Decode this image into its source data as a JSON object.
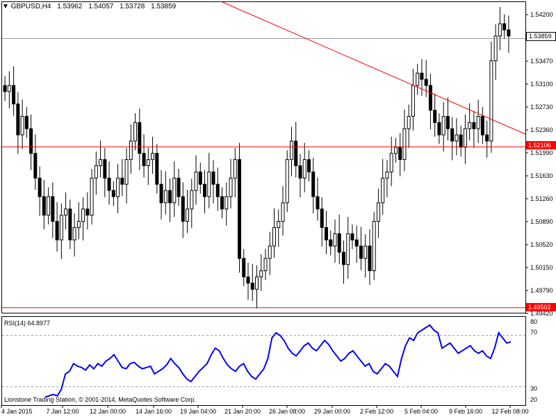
{
  "header": {
    "symbol": "GBPUSD,H4",
    "open": "1.53962",
    "high": "1.54057",
    "low": "1.53728",
    "close": "1.53859"
  },
  "price_axis": {
    "ticks": [
      "1.54200",
      "1.53470",
      "1.53100",
      "1.52730",
      "1.52360",
      "1.51990",
      "1.51630",
      "1.51260",
      "1.50890",
      "1.50520",
      "1.50150",
      "1.49790",
      "1.49420"
    ],
    "current_price": "1.53859",
    "level_1": "1.52106",
    "level_2": "1.49502"
  },
  "rsi": {
    "title": "RSI(14) 64.8977",
    "ticks": [
      "80",
      "70",
      "30",
      "20"
    ]
  },
  "date_axis": {
    "ticks": [
      "4 Jan 2015",
      "7 Jan 12:00",
      "12 Jan 00:00",
      "14 Jan 16:00",
      "19 Jan 04:00",
      "21 Jan 20:00",
      "26 Jan 08:00",
      "29 Jan 00:00",
      "2 Feb 12:00",
      "5 Feb 04:00",
      "9 Feb 16:00",
      "12 Feb 08:00"
    ]
  },
  "footer": {
    "copyright": "Lionstone Trading Station, © 2001-2014, MetaQuotes Software Corp."
  },
  "colors": {
    "candle": "#000000",
    "support_line": "#ff0000",
    "trend_line": "#ff0000",
    "rsi_line": "#0000ff",
    "grid_dash": "#a0a0a0"
  },
  "chart_data": {
    "type": "candlestick",
    "symbol": "GBPUSD",
    "timeframe": "H4",
    "ylim": [
      1.4942,
      1.5445
    ],
    "horizontal_levels": [
      1.52106,
      1.49502,
      1.53859
    ],
    "trendline": {
      "from_index": 0,
      "to_index": 4
    },
    "close": [
      1.53,
      1.531,
      1.528,
      1.523,
      1.526,
      1.524,
      1.52,
      1.516,
      1.513,
      1.51,
      1.513,
      1.509,
      1.506,
      1.51,
      1.511,
      1.506,
      1.508,
      1.509,
      1.511,
      1.51,
      1.516,
      1.518,
      1.519,
      1.516,
      1.514,
      1.513,
      1.516,
      1.515,
      1.519,
      1.522,
      1.525,
      1.52,
      1.518,
      1.519,
      1.52,
      1.515,
      1.512,
      1.514,
      1.512,
      1.516,
      1.513,
      1.509,
      1.511,
      1.514,
      1.517,
      1.515,
      1.513,
      1.517,
      1.515,
      1.513,
      1.511,
      1.513,
      1.516,
      1.519,
      1.503,
      1.5,
      1.499,
      1.498,
      1.5,
      1.501,
      1.503,
      1.505,
      1.508,
      1.509,
      1.512,
      1.519,
      1.522,
      1.518,
      1.516,
      1.519,
      1.517,
      1.513,
      1.511,
      1.508,
      1.506,
      1.505,
      1.507,
      1.504,
      1.502,
      1.507,
      1.506,
      1.505,
      1.503,
      1.505,
      1.501,
      1.509,
      1.512,
      1.516,
      1.517,
      1.52,
      1.521,
      1.519,
      1.524,
      1.526,
      1.531,
      1.533,
      1.532,
      1.531,
      1.527,
      1.525,
      1.523,
      1.526,
      1.524,
      1.522,
      1.523,
      1.521,
      1.524,
      1.525,
      1.524,
      1.526,
      1.523,
      1.522,
      1.535,
      1.539,
      1.541,
      1.54,
      1.539
    ],
    "rsi_values": [
      22,
      23,
      24,
      23,
      28,
      40,
      42,
      48,
      46,
      45,
      43,
      47,
      44,
      48,
      46,
      50,
      52,
      55,
      50,
      45,
      44,
      48,
      49,
      46,
      44,
      45,
      46,
      40,
      42,
      44,
      47,
      52,
      48,
      45,
      40,
      36,
      34,
      38,
      42,
      45,
      48,
      55,
      60,
      58,
      52,
      47,
      44,
      42,
      46,
      48,
      42,
      38,
      36,
      40,
      44,
      52,
      68,
      72,
      70,
      66,
      60,
      56,
      54,
      58,
      62,
      64,
      60,
      58,
      62,
      66,
      63,
      58,
      54,
      50,
      52,
      56,
      58,
      54,
      50,
      46,
      48,
      42,
      40,
      44,
      48,
      46,
      42,
      38,
      52,
      62,
      68,
      66,
      72,
      74,
      76,
      78,
      74,
      72,
      60,
      62,
      64,
      60,
      56,
      58,
      60,
      62,
      58,
      56,
      58,
      54,
      52,
      60,
      72,
      68,
      64,
      65
    ],
    "rsi_levels": [
      70,
      30
    ],
    "rsi_ylim": [
      20,
      80
    ]
  }
}
